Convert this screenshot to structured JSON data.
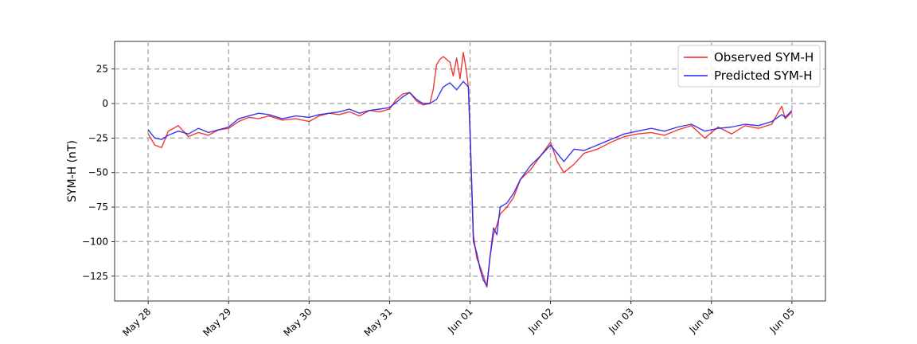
{
  "chart_data": {
    "type": "line",
    "title": "",
    "xlabel": "",
    "ylabel": "SYM-H (nT)",
    "x_ticks": [
      {
        "x": "2024-05-28",
        "label": "May 28"
      },
      {
        "x": "2024-05-29",
        "label": "May 29"
      },
      {
        "x": "2024-05-30",
        "label": "May 30"
      },
      {
        "x": "2024-05-31",
        "label": "May 31"
      },
      {
        "x": "2024-06-01",
        "label": "Jun 01"
      },
      {
        "x": "2024-06-02",
        "label": "Jun 02"
      },
      {
        "x": "2024-06-03",
        "label": "Jun 03"
      },
      {
        "x": "2024-06-04",
        "label": "Jun 04"
      },
      {
        "x": "2024-06-05",
        "label": "Jun 05"
      }
    ],
    "y_ticks": [
      25,
      0,
      -25,
      -50,
      -75,
      -100,
      -125
    ],
    "xlim": [
      "2024-05-27 14:00",
      "2024-06-05 10:00"
    ],
    "ylim": [
      -143,
      45
    ],
    "grid": true,
    "legend_position": "upper right",
    "series": [
      {
        "name": "Observed SYM-H",
        "color": "#ee2222",
        "points": [
          [
            "2024-05-28 00:00",
            -22
          ],
          [
            "2024-05-28 02:00",
            -30
          ],
          [
            "2024-05-28 04:00",
            -32
          ],
          [
            "2024-05-28 06:00",
            -20
          ],
          [
            "2024-05-28 09:00",
            -16
          ],
          [
            "2024-05-28 12:00",
            -24
          ],
          [
            "2024-05-28 15:00",
            -21
          ],
          [
            "2024-05-28 18:00",
            -23
          ],
          [
            "2024-05-28 21:00",
            -19
          ],
          [
            "2024-05-29 00:00",
            -18
          ],
          [
            "2024-05-29 03:00",
            -13
          ],
          [
            "2024-05-29 06:00",
            -10
          ],
          [
            "2024-05-29 09:00",
            -11
          ],
          [
            "2024-05-29 12:00",
            -9
          ],
          [
            "2024-05-29 16:00",
            -12
          ],
          [
            "2024-05-29 20:00",
            -11
          ],
          [
            "2024-05-30 00:00",
            -13
          ],
          [
            "2024-05-30 03:00",
            -9
          ],
          [
            "2024-05-30 06:00",
            -7
          ],
          [
            "2024-05-30 09:00",
            -8
          ],
          [
            "2024-05-30 12:00",
            -6
          ],
          [
            "2024-05-30 15:00",
            -9
          ],
          [
            "2024-05-30 18:00",
            -5
          ],
          [
            "2024-05-30 21:00",
            -6
          ],
          [
            "2024-05-31 00:00",
            -4
          ],
          [
            "2024-05-31 02:00",
            3
          ],
          [
            "2024-05-31 04:00",
            7
          ],
          [
            "2024-05-31 06:00",
            8
          ],
          [
            "2024-05-31 08:00",
            2
          ],
          [
            "2024-05-31 10:00",
            -1
          ],
          [
            "2024-05-31 12:00",
            0
          ],
          [
            "2024-05-31 13:00",
            10
          ],
          [
            "2024-05-31 14:00",
            28
          ],
          [
            "2024-05-31 15:00",
            32
          ],
          [
            "2024-05-31 16:00",
            34
          ],
          [
            "2024-05-31 18:00",
            30
          ],
          [
            "2024-05-31 19:00",
            20
          ],
          [
            "2024-05-31 20:00",
            33
          ],
          [
            "2024-05-31 21:00",
            18
          ],
          [
            "2024-05-31 22:00",
            37
          ],
          [
            "2024-05-31 23:00",
            22
          ],
          [
            "2024-05-31 23:30",
            12
          ],
          [
            "2024-06-01 00:00",
            -20
          ],
          [
            "2024-06-01 01:00",
            -95
          ],
          [
            "2024-06-01 02:00",
            -112
          ],
          [
            "2024-06-01 03:00",
            -118
          ],
          [
            "2024-06-01 04:00",
            -125
          ],
          [
            "2024-06-01 05:00",
            -133
          ],
          [
            "2024-06-01 06:00",
            -110
          ],
          [
            "2024-06-01 07:00",
            -95
          ],
          [
            "2024-06-01 08:00",
            -88
          ],
          [
            "2024-06-01 09:00",
            -80
          ],
          [
            "2024-06-01 11:00",
            -75
          ],
          [
            "2024-06-01 13:00",
            -68
          ],
          [
            "2024-06-01 15:00",
            -55
          ],
          [
            "2024-06-01 18:00",
            -48
          ],
          [
            "2024-06-01 21:00",
            -38
          ],
          [
            "2024-06-02 00:00",
            -28
          ],
          [
            "2024-06-02 02:00",
            -42
          ],
          [
            "2024-06-02 04:00",
            -50
          ],
          [
            "2024-06-02 07:00",
            -44
          ],
          [
            "2024-06-02 10:00",
            -36
          ],
          [
            "2024-06-02 14:00",
            -33
          ],
          [
            "2024-06-02 18:00",
            -28
          ],
          [
            "2024-06-02 22:00",
            -24
          ],
          [
            "2024-06-03 02:00",
            -22
          ],
          [
            "2024-06-03 06:00",
            -21
          ],
          [
            "2024-06-03 10:00",
            -23
          ],
          [
            "2024-06-03 14:00",
            -19
          ],
          [
            "2024-06-03 18:00",
            -16
          ],
          [
            "2024-06-03 22:00",
            -25
          ],
          [
            "2024-06-04 02:00",
            -17
          ],
          [
            "2024-06-04 06:00",
            -22
          ],
          [
            "2024-06-04 10:00",
            -16
          ],
          [
            "2024-06-04 14:00",
            -18
          ],
          [
            "2024-06-04 18:00",
            -15
          ],
          [
            "2024-06-04 20:00",
            -6
          ],
          [
            "2024-06-04 21:00",
            -2
          ],
          [
            "2024-06-04 22:00",
            -11
          ],
          [
            "2024-06-05 00:00",
            -6
          ]
        ]
      },
      {
        "name": "Predicted SYM-H",
        "color": "#2222ee",
        "points": [
          [
            "2024-05-28 00:00",
            -19
          ],
          [
            "2024-05-28 02:00",
            -25
          ],
          [
            "2024-05-28 04:00",
            -26
          ],
          [
            "2024-05-28 06:00",
            -23
          ],
          [
            "2024-05-28 09:00",
            -20
          ],
          [
            "2024-05-28 12:00",
            -22
          ],
          [
            "2024-05-28 15:00",
            -18
          ],
          [
            "2024-05-28 18:00",
            -21
          ],
          [
            "2024-05-28 21:00",
            -19
          ],
          [
            "2024-05-29 00:00",
            -17
          ],
          [
            "2024-05-29 03:00",
            -11
          ],
          [
            "2024-05-29 06:00",
            -9
          ],
          [
            "2024-05-29 09:00",
            -7
          ],
          [
            "2024-05-29 12:00",
            -8
          ],
          [
            "2024-05-29 16:00",
            -11
          ],
          [
            "2024-05-29 20:00",
            -9
          ],
          [
            "2024-05-30 00:00",
            -10
          ],
          [
            "2024-05-30 03:00",
            -8
          ],
          [
            "2024-05-30 06:00",
            -7
          ],
          [
            "2024-05-30 09:00",
            -6
          ],
          [
            "2024-05-30 12:00",
            -4
          ],
          [
            "2024-05-30 15:00",
            -7
          ],
          [
            "2024-05-30 18:00",
            -5
          ],
          [
            "2024-05-30 21:00",
            -4
          ],
          [
            "2024-05-31 00:00",
            -3
          ],
          [
            "2024-05-31 02:00",
            1
          ],
          [
            "2024-05-31 04:00",
            5
          ],
          [
            "2024-05-31 06:00",
            8
          ],
          [
            "2024-05-31 08:00",
            3
          ],
          [
            "2024-05-31 10:00",
            0
          ],
          [
            "2024-05-31 12:00",
            0
          ],
          [
            "2024-05-31 14:00",
            3
          ],
          [
            "2024-05-31 16:00",
            12
          ],
          [
            "2024-05-31 18:00",
            15
          ],
          [
            "2024-05-31 20:00",
            10
          ],
          [
            "2024-05-31 22:00",
            16
          ],
          [
            "2024-05-31 23:30",
            12
          ],
          [
            "2024-06-01 00:00",
            -20
          ],
          [
            "2024-06-01 01:00",
            -100
          ],
          [
            "2024-06-01 02:00",
            -108
          ],
          [
            "2024-06-01 03:00",
            -120
          ],
          [
            "2024-06-01 04:00",
            -128
          ],
          [
            "2024-06-01 05:00",
            -132
          ],
          [
            "2024-06-01 06:00",
            -110
          ],
          [
            "2024-06-01 07:00",
            -90
          ],
          [
            "2024-06-01 08:00",
            -95
          ],
          [
            "2024-06-01 09:00",
            -75
          ],
          [
            "2024-06-01 11:00",
            -72
          ],
          [
            "2024-06-01 13:00",
            -65
          ],
          [
            "2024-06-01 15:00",
            -55
          ],
          [
            "2024-06-01 18:00",
            -45
          ],
          [
            "2024-06-01 21:00",
            -38
          ],
          [
            "2024-06-02 00:00",
            -30
          ],
          [
            "2024-06-02 02:00",
            -36
          ],
          [
            "2024-06-02 04:00",
            -42
          ],
          [
            "2024-06-02 07:00",
            -33
          ],
          [
            "2024-06-02 10:00",
            -34
          ],
          [
            "2024-06-02 14:00",
            -30
          ],
          [
            "2024-06-02 18:00",
            -26
          ],
          [
            "2024-06-02 22:00",
            -22
          ],
          [
            "2024-06-03 02:00",
            -20
          ],
          [
            "2024-06-03 06:00",
            -18
          ],
          [
            "2024-06-03 10:00",
            -20
          ],
          [
            "2024-06-03 14:00",
            -17
          ],
          [
            "2024-06-03 18:00",
            -15
          ],
          [
            "2024-06-03 22:00",
            -20
          ],
          [
            "2024-06-04 02:00",
            -18
          ],
          [
            "2024-06-04 06:00",
            -17
          ],
          [
            "2024-06-04 10:00",
            -15
          ],
          [
            "2024-06-04 14:00",
            -16
          ],
          [
            "2024-06-04 18:00",
            -13
          ],
          [
            "2024-06-04 21:00",
            -8
          ],
          [
            "2024-06-04 22:00",
            -10
          ],
          [
            "2024-06-05 00:00",
            -5
          ]
        ]
      }
    ]
  }
}
